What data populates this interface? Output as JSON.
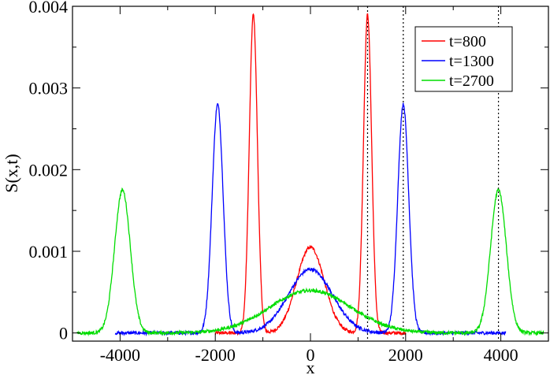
{
  "chart_data": {
    "type": "line",
    "xlabel": "x",
    "ylabel": "S(x,t)",
    "xlim": [
      -5000,
      5000
    ],
    "ylim": [
      -0.0001,
      0.004
    ],
    "xticks": [
      -4000,
      -2000,
      0,
      2000,
      4000
    ],
    "xtick_labels": [
      "-4000",
      "-2000",
      "0",
      "2000",
      "4000"
    ],
    "yticks": [
      0,
      0.001,
      0.002,
      0.003,
      0.004
    ],
    "ytick_labels": [
      "0",
      "0.001",
      "0.002",
      "0.003",
      "0.004"
    ],
    "grid": false,
    "legend_position": "top-right",
    "vertical_reference_lines": [
      1200,
      1950,
      3950
    ],
    "series": [
      {
        "name": "t=800",
        "color": "#ff0000",
        "components": [
          {
            "center": -1200,
            "amplitude": 0.0039,
            "width": 85
          },
          {
            "center": 1200,
            "amplitude": 0.0039,
            "width": 85
          },
          {
            "center": 0,
            "amplitude": 0.00105,
            "width": 290
          }
        ],
        "x_range": [
          -2000,
          2000
        ]
      },
      {
        "name": "t=1300",
        "color": "#0000ff",
        "components": [
          {
            "center": -1950,
            "amplitude": 0.0028,
            "width": 115
          },
          {
            "center": 1950,
            "amplitude": 0.0028,
            "width": 115
          },
          {
            "center": 0,
            "amplitude": 0.00078,
            "width": 460
          }
        ],
        "x_range": [
          -4100,
          4100
        ]
      },
      {
        "name": "t=2700",
        "color": "#00dd00",
        "components": [
          {
            "center": -3950,
            "amplitude": 0.00175,
            "width": 165
          },
          {
            "center": 3950,
            "amplitude": 0.00175,
            "width": 165
          },
          {
            "center": 0,
            "amplitude": 0.00052,
            "width": 850
          }
        ],
        "x_range": [
          -4900,
          4900
        ]
      }
    ]
  }
}
